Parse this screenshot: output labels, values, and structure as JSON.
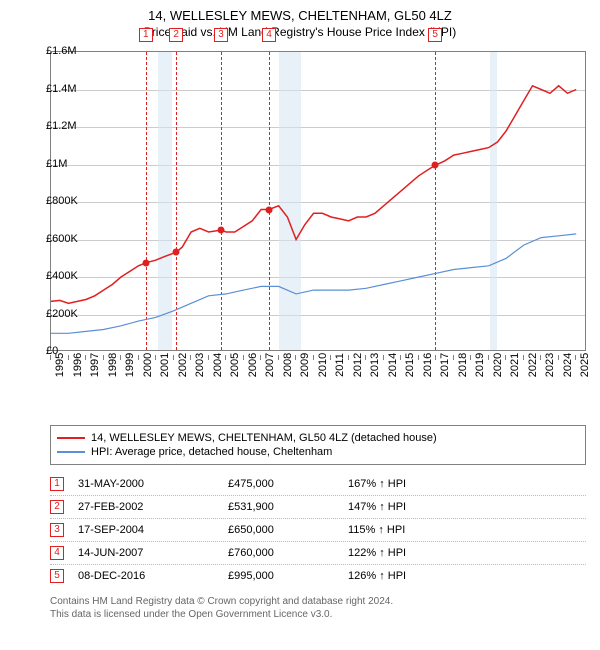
{
  "title": {
    "line1": "14, WELLESLEY MEWS, CHELTENHAM, GL50 4LZ",
    "line2": "Price paid vs. HM Land Registry's House Price Index (HPI)"
  },
  "chart": {
    "type": "line",
    "background_color": "#ffffff",
    "grid_color": "#cccccc",
    "border_color": "#808080",
    "x_domain": [
      1995,
      2025.5
    ],
    "y_domain": [
      0,
      1600000
    ],
    "y_ticks": [
      {
        "v": 0,
        "label": "£0"
      },
      {
        "v": 200000,
        "label": "£200K"
      },
      {
        "v": 400000,
        "label": "£400K"
      },
      {
        "v": 600000,
        "label": "£600K"
      },
      {
        "v": 800000,
        "label": "£800K"
      },
      {
        "v": 1000000,
        "label": "£1M"
      },
      {
        "v": 1200000,
        "label": "£1.2M"
      },
      {
        "v": 1400000,
        "label": "£1.4M"
      },
      {
        "v": 1600000,
        "label": "£1.6M"
      }
    ],
    "x_ticks": [
      1995,
      1996,
      1997,
      1998,
      1999,
      2000,
      2001,
      2002,
      2003,
      2004,
      2005,
      2006,
      2007,
      2008,
      2009,
      2010,
      2011,
      2012,
      2013,
      2014,
      2015,
      2016,
      2017,
      2018,
      2019,
      2020,
      2021,
      2022,
      2023,
      2024,
      2025
    ],
    "recession_bands": [
      {
        "start": 2001.1,
        "end": 2001.9
      },
      {
        "start": 2008.0,
        "end": 2009.3
      },
      {
        "start": 2020.1,
        "end": 2020.5
      }
    ],
    "series_property": {
      "color": "#e02020",
      "line_width": 1.5,
      "points": [
        [
          1995.0,
          270000
        ],
        [
          1995.5,
          275000
        ],
        [
          1996.0,
          260000
        ],
        [
          1996.5,
          270000
        ],
        [
          1997.0,
          280000
        ],
        [
          1997.5,
          300000
        ],
        [
          1998.0,
          330000
        ],
        [
          1998.5,
          360000
        ],
        [
          1999.0,
          400000
        ],
        [
          1999.5,
          430000
        ],
        [
          2000.0,
          460000
        ],
        [
          2000.4,
          475000
        ],
        [
          2001.0,
          490000
        ],
        [
          2001.5,
          510000
        ],
        [
          2002.15,
          531900
        ],
        [
          2002.5,
          560000
        ],
        [
          2003.0,
          640000
        ],
        [
          2003.5,
          660000
        ],
        [
          2004.0,
          640000
        ],
        [
          2004.7,
          650000
        ],
        [
          2005.0,
          640000
        ],
        [
          2005.5,
          640000
        ],
        [
          2006.0,
          670000
        ],
        [
          2006.5,
          700000
        ],
        [
          2007.0,
          760000
        ],
        [
          2007.45,
          760000
        ],
        [
          2008.0,
          780000
        ],
        [
          2008.5,
          720000
        ],
        [
          2009.0,
          600000
        ],
        [
          2009.5,
          680000
        ],
        [
          2010.0,
          740000
        ],
        [
          2010.5,
          740000
        ],
        [
          2011.0,
          720000
        ],
        [
          2011.5,
          710000
        ],
        [
          2012.0,
          700000
        ],
        [
          2012.5,
          720000
        ],
        [
          2013.0,
          720000
        ],
        [
          2013.5,
          740000
        ],
        [
          2014.0,
          780000
        ],
        [
          2014.5,
          820000
        ],
        [
          2015.0,
          860000
        ],
        [
          2015.5,
          900000
        ],
        [
          2016.0,
          940000
        ],
        [
          2016.5,
          970000
        ],
        [
          2016.94,
          995000
        ],
        [
          2017.5,
          1020000
        ],
        [
          2018.0,
          1050000
        ],
        [
          2018.5,
          1060000
        ],
        [
          2019.0,
          1070000
        ],
        [
          2019.5,
          1080000
        ],
        [
          2020.0,
          1090000
        ],
        [
          2020.5,
          1120000
        ],
        [
          2021.0,
          1180000
        ],
        [
          2021.5,
          1260000
        ],
        [
          2022.0,
          1340000
        ],
        [
          2022.5,
          1420000
        ],
        [
          2023.0,
          1400000
        ],
        [
          2023.5,
          1380000
        ],
        [
          2024.0,
          1420000
        ],
        [
          2024.5,
          1380000
        ],
        [
          2025.0,
          1400000
        ]
      ]
    },
    "series_hpi": {
      "color": "#5b8fd6",
      "line_width": 1.2,
      "points": [
        [
          1995.0,
          100000
        ],
        [
          1996.0,
          100000
        ],
        [
          1997.0,
          110000
        ],
        [
          1998.0,
          120000
        ],
        [
          1999.0,
          140000
        ],
        [
          2000.0,
          165000
        ],
        [
          2001.0,
          185000
        ],
        [
          2002.0,
          220000
        ],
        [
          2003.0,
          260000
        ],
        [
          2004.0,
          300000
        ],
        [
          2005.0,
          310000
        ],
        [
          2006.0,
          330000
        ],
        [
          2007.0,
          350000
        ],
        [
          2008.0,
          350000
        ],
        [
          2009.0,
          310000
        ],
        [
          2010.0,
          330000
        ],
        [
          2011.0,
          330000
        ],
        [
          2012.0,
          330000
        ],
        [
          2013.0,
          340000
        ],
        [
          2014.0,
          360000
        ],
        [
          2015.0,
          380000
        ],
        [
          2016.0,
          400000
        ],
        [
          2017.0,
          420000
        ],
        [
          2018.0,
          440000
        ],
        [
          2019.0,
          450000
        ],
        [
          2020.0,
          460000
        ],
        [
          2021.0,
          500000
        ],
        [
          2022.0,
          570000
        ],
        [
          2023.0,
          610000
        ],
        [
          2024.0,
          620000
        ],
        [
          2025.0,
          630000
        ]
      ]
    },
    "sale_markers": [
      {
        "n": "1",
        "x": 2000.41,
        "y": 475000
      },
      {
        "n": "2",
        "x": 2002.15,
        "y": 531900
      },
      {
        "n": "3",
        "x": 2004.71,
        "y": 650000
      },
      {
        "n": "4",
        "x": 2007.45,
        "y": 760000
      },
      {
        "n": "5",
        "x": 2016.94,
        "y": 995000
      }
    ]
  },
  "legend": {
    "items": [
      {
        "color": "#e02020",
        "label": "14, WELLESLEY MEWS, CHELTENHAM, GL50 4LZ (detached house)"
      },
      {
        "color": "#5b8fd6",
        "label": "HPI: Average price, detached house, Cheltenham"
      }
    ]
  },
  "sales": [
    {
      "n": "1",
      "date": "31-MAY-2000",
      "price": "£475,000",
      "pct": "167% ↑ HPI"
    },
    {
      "n": "2",
      "date": "27-FEB-2002",
      "price": "£531,900",
      "pct": "147% ↑ HPI"
    },
    {
      "n": "3",
      "date": "17-SEP-2004",
      "price": "£650,000",
      "pct": "115% ↑ HPI"
    },
    {
      "n": "4",
      "date": "14-JUN-2007",
      "price": "£760,000",
      "pct": "122% ↑ HPI"
    },
    {
      "n": "5",
      "date": "08-DEC-2016",
      "price": "£995,000",
      "pct": "126% ↑ HPI"
    }
  ],
  "footer": {
    "line1": "Contains HM Land Registry data © Crown copyright and database right 2024.",
    "line2": "This data is licensed under the Open Government Licence v3.0."
  }
}
